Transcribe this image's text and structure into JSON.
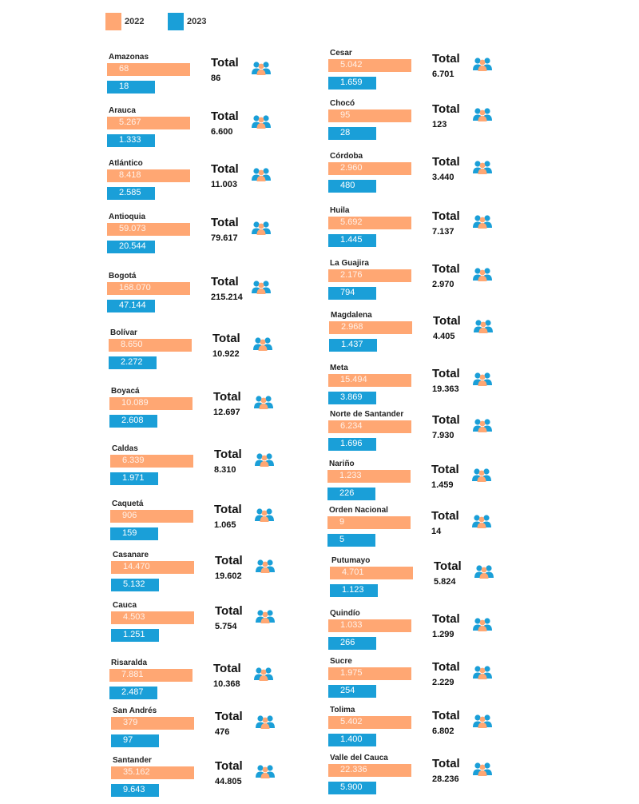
{
  "legend": [
    {
      "label": "2022",
      "color": "#ffa773"
    },
    {
      "label": "2023",
      "color": "#1a9fd8"
    }
  ],
  "colors": {
    "y2022": "#ffa773",
    "y2023": "#1a9fd8",
    "icon": "#1a9fd8",
    "icon_face": "#ffa773"
  },
  "icon": "people-icon",
  "total_label": "Total",
  "chart_data": {
    "type": "bar",
    "series": [
      {
        "name": "2022",
        "values": [
          68,
          5267,
          8418,
          59073,
          168070,
          8650,
          10089,
          6339,
          906,
          14470,
          4503,
          7881,
          379,
          35162,
          5042,
          95,
          2960,
          5692,
          2176,
          2968,
          15494,
          6234,
          1233,
          9,
          4701,
          1033,
          1975,
          5402,
          22336
        ]
      },
      {
        "name": "2023",
        "values": [
          18,
          1333,
          2585,
          20544,
          47144,
          2272,
          2608,
          1971,
          159,
          5132,
          1251,
          2487,
          97,
          9643,
          1659,
          28,
          480,
          1445,
          794,
          1437,
          3869,
          1696,
          226,
          5,
          1123,
          266,
          254,
          1400,
          5900
        ]
      }
    ],
    "categories": [
      "Amazonas",
      "Arauca",
      "Atlántico",
      "Antioquia",
      "Bogotá",
      "Bolívar",
      "Boyacá",
      "Caldas",
      "Caquetá",
      "Casanare",
      "Cauca",
      "Risaralda",
      "San Andrés",
      "Santander",
      "Cesar",
      "Chocó",
      "Córdoba",
      "Huila",
      "La Guajira",
      "Magdalena",
      "Meta",
      "Norte de Santander",
      "Nariño",
      "Orden Nacional",
      "Putumayo",
      "Quindío",
      "Sucre",
      "Tolima",
      "Valle del Cauca"
    ],
    "entries": [
      {
        "name": "Amazonas",
        "v2022": "68",
        "v2023": "18",
        "total": "86"
      },
      {
        "name": "Arauca",
        "v2022": "5.267",
        "v2023": "1.333",
        "total": "6.600"
      },
      {
        "name": "Atlántico",
        "v2022": "8.418",
        "v2023": "2.585",
        "total": "11.003"
      },
      {
        "name": "Antioquia",
        "v2022": "59.073",
        "v2023": "20.544",
        "total": "79.617"
      },
      {
        "name": "Bogotá",
        "v2022": "168.070",
        "v2023": "47.144",
        "total": "215.214"
      },
      {
        "name": "Bolívar",
        "v2022": "8.650",
        "v2023": "2.272",
        "total": "10.922"
      },
      {
        "name": "Boyacá",
        "v2022": "10.089",
        "v2023": "2.608",
        "total": "12.697"
      },
      {
        "name": "Caldas",
        "v2022": "6.339",
        "v2023": "1.971",
        "total": "8.310"
      },
      {
        "name": "Caquetá",
        "v2022": "906",
        "v2023": "159",
        "total": "1.065"
      },
      {
        "name": "Casanare",
        "v2022": "14.470",
        "v2023": "5.132",
        "total": "19.602"
      },
      {
        "name": "Cauca",
        "v2022": "4.503",
        "v2023": "1.251",
        "total": "5.754"
      },
      {
        "name": "Risaralda",
        "v2022": "7.881",
        "v2023": "2.487",
        "total": "10.368"
      },
      {
        "name": "San Andrés",
        "v2022": "379",
        "v2023": "97",
        "total": "476"
      },
      {
        "name": "Santander",
        "v2022": "35.162",
        "v2023": "9.643",
        "total": "44.805"
      },
      {
        "name": "Cesar",
        "v2022": "5.042",
        "v2023": "1.659",
        "total": "6.701"
      },
      {
        "name": "Chocó",
        "v2022": "95",
        "v2023": "28",
        "total": "123"
      },
      {
        "name": "Córdoba",
        "v2022": "2.960",
        "v2023": "480",
        "total": "3.440"
      },
      {
        "name": "Huila",
        "v2022": "5.692",
        "v2023": "1.445",
        "total": "7.137"
      },
      {
        "name": "La Guajira",
        "v2022": "2.176",
        "v2023": "794",
        "total": "2.970"
      },
      {
        "name": "Magdalena",
        "v2022": "2.968",
        "v2023": "1.437",
        "total": "4.405"
      },
      {
        "name": "Meta",
        "v2022": "15.494",
        "v2023": "3.869",
        "total": "19.363"
      },
      {
        "name": "Norte de Santander",
        "v2022": "6.234",
        "v2023": "1.696",
        "total": "7.930"
      },
      {
        "name": "Nariño",
        "v2022": "1.233",
        "v2023": "226",
        "total": "1.459"
      },
      {
        "name": "Orden Nacional",
        "v2022": "9",
        "v2023": "5",
        "total": "14"
      },
      {
        "name": "Putumayo",
        "v2022": "4.701",
        "v2023": "1.123",
        "total": "5.824"
      },
      {
        "name": "Quindío",
        "v2022": "1.033",
        "v2023": "266",
        "total": "1.299"
      },
      {
        "name": "Sucre",
        "v2022": "1.975",
        "v2023": "254",
        "total": "2.229"
      },
      {
        "name": "Tolima",
        "v2022": "5.402",
        "v2023": "1.400",
        "total": "6.802"
      },
      {
        "name": "Valle del Cauca",
        "v2022": "22.336",
        "v2023": "5.900",
        "total": "28.236"
      }
    ]
  }
}
